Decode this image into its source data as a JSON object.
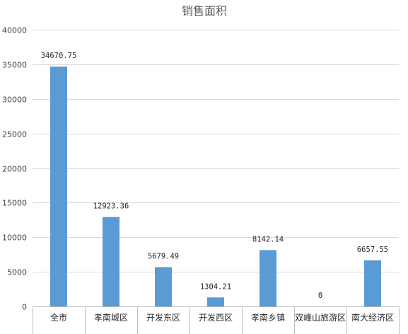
{
  "chart_data": {
    "type": "bar",
    "title": "销售面积",
    "categories": [
      "全市",
      "孝南城区",
      "开发东区",
      "开发西区",
      "孝南乡镇",
      "双峰山旅游区",
      "南大经济区"
    ],
    "values": [
      34670.75,
      12923.36,
      5679.49,
      1304.21,
      8142.14,
      0,
      6657.55
    ],
    "data_labels": [
      "34670.75",
      "12923.36",
      "5679.49",
      "1304.21",
      "8142.14",
      "0",
      "6657.55"
    ],
    "y_ticks": [
      0,
      5000,
      10000,
      15000,
      20000,
      25000,
      30000,
      35000,
      40000
    ],
    "ylim": [
      0,
      40000
    ],
    "xlabel": "",
    "ylabel": "",
    "grid": true,
    "legend": "none",
    "bar_color": "#5b9bd5"
  }
}
